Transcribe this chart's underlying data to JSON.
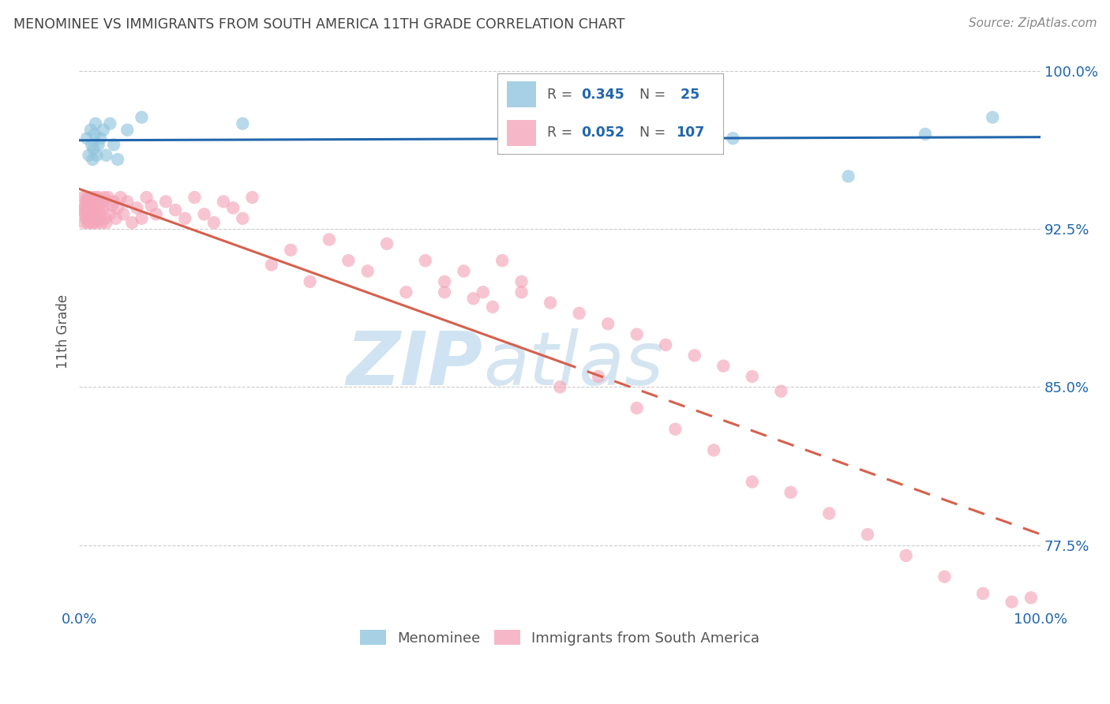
{
  "title": "MENOMINEE VS IMMIGRANTS FROM SOUTH AMERICA 11TH GRADE CORRELATION CHART",
  "source": "Source: ZipAtlas.com",
  "ylabel": "11th Grade",
  "xlim": [
    0.0,
    1.0
  ],
  "ylim": [
    0.745,
    1.008
  ],
  "yticks": [
    0.775,
    0.85,
    0.925,
    1.0
  ],
  "ytick_labels": [
    "77.5%",
    "85.0%",
    "92.5%",
    "100.0%"
  ],
  "watermark_zip": "ZIP",
  "watermark_atlas": "atlas",
  "blue_color": "#92c5de",
  "pink_color": "#f4a6bb",
  "blue_line_color": "#2166ac",
  "pink_line_color": "#d6604d",
  "title_color": "#444444",
  "source_color": "#888888",
  "axis_label_color": "#2166ac",
  "legend_value_color": "#2166ac",
  "legend_label_color": "#555555",
  "pink_line_solid_end": 0.5,
  "blue_scatter_x": [
    0.008,
    0.01,
    0.012,
    0.013,
    0.014,
    0.015,
    0.016,
    0.017,
    0.018,
    0.02,
    0.022,
    0.025,
    0.028,
    0.032,
    0.036,
    0.04,
    0.05,
    0.065,
    0.17,
    0.55,
    0.6,
    0.68,
    0.8,
    0.88,
    0.95
  ],
  "blue_scatter_y": [
    0.968,
    0.96,
    0.972,
    0.965,
    0.958,
    0.963,
    0.97,
    0.975,
    0.96,
    0.965,
    0.968,
    0.972,
    0.96,
    0.975,
    0.965,
    0.958,
    0.972,
    0.978,
    0.975,
    0.965,
    0.975,
    0.968,
    0.95,
    0.97,
    0.978
  ],
  "pink_scatter_x": [
    0.003,
    0.004,
    0.005,
    0.005,
    0.006,
    0.007,
    0.007,
    0.008,
    0.008,
    0.009,
    0.009,
    0.01,
    0.01,
    0.011,
    0.011,
    0.012,
    0.012,
    0.012,
    0.013,
    0.013,
    0.014,
    0.014,
    0.015,
    0.015,
    0.016,
    0.016,
    0.017,
    0.017,
    0.018,
    0.018,
    0.019,
    0.02,
    0.02,
    0.021,
    0.022,
    0.023,
    0.024,
    0.025,
    0.026,
    0.027,
    0.028,
    0.03,
    0.032,
    0.034,
    0.036,
    0.038,
    0.04,
    0.043,
    0.046,
    0.05,
    0.055,
    0.06,
    0.065,
    0.07,
    0.075,
    0.08,
    0.09,
    0.1,
    0.11,
    0.12,
    0.13,
    0.14,
    0.15,
    0.16,
    0.17,
    0.18,
    0.2,
    0.22,
    0.24,
    0.26,
    0.28,
    0.3,
    0.32,
    0.34,
    0.36,
    0.38,
    0.4,
    0.42,
    0.44,
    0.46,
    0.5,
    0.54,
    0.58,
    0.62,
    0.66,
    0.7,
    0.74,
    0.78,
    0.82,
    0.86,
    0.9,
    0.94,
    0.97,
    0.99,
    0.38,
    0.41,
    0.43,
    0.46,
    0.49,
    0.52,
    0.55,
    0.58,
    0.61,
    0.64,
    0.67,
    0.7,
    0.73
  ],
  "pink_scatter_y": [
    0.934,
    0.94,
    0.928,
    0.935,
    0.932,
    0.938,
    0.93,
    0.935,
    0.94,
    0.928,
    0.934,
    0.938,
    0.93,
    0.935,
    0.94,
    0.932,
    0.928,
    0.936,
    0.93,
    0.938,
    0.934,
    0.94,
    0.928,
    0.935,
    0.93,
    0.938,
    0.932,
    0.94,
    0.928,
    0.934,
    0.936,
    0.93,
    0.94,
    0.935,
    0.932,
    0.928,
    0.938,
    0.935,
    0.94,
    0.93,
    0.928,
    0.94,
    0.932,
    0.936,
    0.938,
    0.93,
    0.935,
    0.94,
    0.932,
    0.938,
    0.928,
    0.935,
    0.93,
    0.94,
    0.936,
    0.932,
    0.938,
    0.934,
    0.93,
    0.94,
    0.932,
    0.928,
    0.938,
    0.935,
    0.93,
    0.94,
    0.908,
    0.915,
    0.9,
    0.92,
    0.91,
    0.905,
    0.918,
    0.895,
    0.91,
    0.9,
    0.905,
    0.895,
    0.91,
    0.9,
    0.85,
    0.855,
    0.84,
    0.83,
    0.82,
    0.805,
    0.8,
    0.79,
    0.78,
    0.77,
    0.76,
    0.752,
    0.748,
    0.75,
    0.895,
    0.892,
    0.888,
    0.895,
    0.89,
    0.885,
    0.88,
    0.875,
    0.87,
    0.865,
    0.86,
    0.855,
    0.848
  ]
}
